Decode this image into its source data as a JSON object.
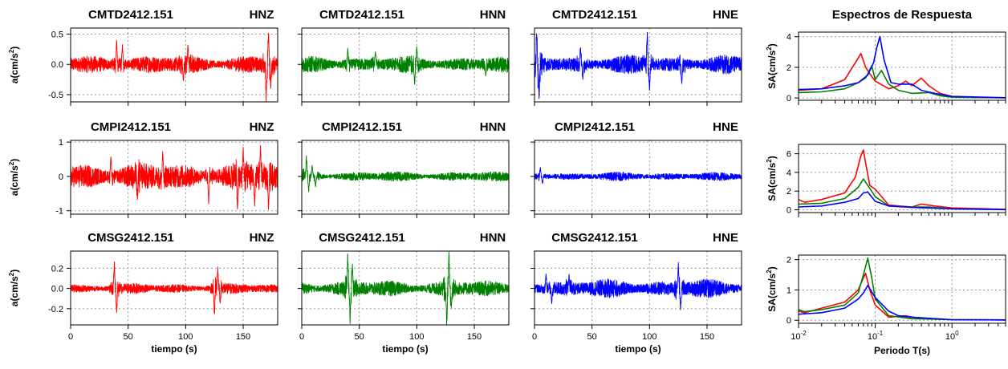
{
  "chart_data": {
    "type": "line",
    "figure": "seismic acceleration records and response spectra",
    "time_axis": {
      "xlabel": "tiempo (s)",
      "xlim": [
        0,
        180
      ],
      "ticks": [
        0,
        50,
        100,
        150
      ]
    },
    "accel_ylabel": "a(cm/s²)",
    "accel_ylabel_exp": "2",
    "channels": [
      {
        "label": "HNZ",
        "color": "#ff0000"
      },
      {
        "label": "HNN",
        "color": "#008000"
      },
      {
        "label": "HNE",
        "color": "#0000ff"
      }
    ],
    "stations": [
      {
        "name": "CMTD2412.151",
        "ylim": [
          -0.62,
          0.6
        ],
        "yticks": [
          {
            "v": 0.5,
            "label": "0.5"
          },
          {
            "v": 0.0,
            "label": "0.0"
          },
          {
            "v": -0.5,
            "label": "-0.5"
          }
        ],
        "traces": [
          {
            "channel": "HNZ",
            "amp": 0.075,
            "peaks": [
              [
                40,
                0.42
              ],
              [
                45,
                0.33
              ],
              [
                98,
                -0.3
              ],
              [
                102,
                0.32
              ],
              [
                170,
                -0.55
              ],
              [
                172,
                0.52
              ],
              [
                174,
                -0.4
              ]
            ]
          },
          {
            "channel": "HNN",
            "amp": 0.065,
            "peaks": [
              [
                40,
                0.28
              ],
              [
                64,
                0.22
              ],
              [
                98,
                -0.35
              ],
              [
                100,
                0.3
              ],
              [
                160,
                -0.2
              ]
            ]
          },
          {
            "channel": "HNE",
            "amp": 0.075,
            "peaks": [
              [
                2,
                0.6
              ],
              [
                4,
                -0.6
              ],
              [
                40,
                0.3
              ],
              [
                42,
                -0.25
              ],
              [
                98,
                0.52
              ],
              [
                100,
                -0.45
              ],
              [
                128,
                -0.33
              ]
            ]
          }
        ],
        "spectrum": {
          "ylabel": "SA(cm/s²)",
          "ylim": [
            -0.15,
            4.3
          ],
          "yticks": [
            0,
            2,
            4
          ],
          "curves": [
            {
              "channel": "HNZ",
              "points": [
                [
                  0.01,
                  0.5
                ],
                [
                  0.02,
                  0.6
                ],
                [
                  0.04,
                  1.2
                ],
                [
                  0.055,
                  2.3
                ],
                [
                  0.065,
                  2.9
                ],
                [
                  0.075,
                  2.0
                ],
                [
                  0.09,
                  1.4
                ],
                [
                  0.1,
                  1.1
                ],
                [
                  0.15,
                  0.6
                ],
                [
                  0.2,
                  0.8
                ],
                [
                  0.25,
                  1.1
                ],
                [
                  0.3,
                  0.8
                ],
                [
                  0.4,
                  1.3
                ],
                [
                  0.5,
                  0.8
                ],
                [
                  0.7,
                  0.3
                ],
                [
                  1.0,
                  0.1
                ],
                [
                  2.0,
                  0.03
                ],
                [
                  5.0,
                  0.02
                ]
              ]
            },
            {
              "channel": "HNN",
              "points": [
                [
                  0.01,
                  0.35
                ],
                [
                  0.02,
                  0.4
                ],
                [
                  0.04,
                  0.6
                ],
                [
                  0.06,
                  1.0
                ],
                [
                  0.075,
                  1.3
                ],
                [
                  0.09,
                  2.1
                ],
                [
                  0.1,
                  1.2
                ],
                [
                  0.12,
                  1.8
                ],
                [
                  0.15,
                  0.9
                ],
                [
                  0.2,
                  0.5
                ],
                [
                  0.3,
                  0.3
                ],
                [
                  0.5,
                  0.35
                ],
                [
                  0.7,
                  0.15
                ],
                [
                  1.0,
                  0.05
                ],
                [
                  5.0,
                  0.01
                ]
              ]
            },
            {
              "channel": "HNE",
              "points": [
                [
                  0.01,
                  0.55
                ],
                [
                  0.02,
                  0.6
                ],
                [
                  0.04,
                  0.8
                ],
                [
                  0.06,
                  1.0
                ],
                [
                  0.08,
                  1.5
                ],
                [
                  0.095,
                  2.3
                ],
                [
                  0.105,
                  3.3
                ],
                [
                  0.115,
                  4.0
                ],
                [
                  0.13,
                  2.5
                ],
                [
                  0.16,
                  1.0
                ],
                [
                  0.2,
                  0.9
                ],
                [
                  0.3,
                  0.9
                ],
                [
                  0.4,
                  0.5
                ],
                [
                  0.6,
                  0.3
                ],
                [
                  1.0,
                  0.1
                ],
                [
                  5.0,
                  0.02
                ]
              ]
            }
          ]
        }
      },
      {
        "name": "CMPI2412.151",
        "ylim": [
          -1.1,
          1.05
        ],
        "yticks": [
          {
            "v": 1,
            "label": "1"
          },
          {
            "v": 0,
            "label": "0"
          },
          {
            "v": -1,
            "label": "-1"
          }
        ],
        "traces": [
          {
            "channel": "HNZ",
            "amp": 0.2,
            "peaks": [
              [
                35,
                0.6
              ],
              [
                58,
                -0.7
              ],
              [
                80,
                0.75
              ],
              [
                120,
                -0.8
              ],
              [
                145,
                -1.0
              ],
              [
                150,
                0.85
              ],
              [
                160,
                -0.9
              ],
              [
                165,
                0.9
              ],
              [
                172,
                -1.0
              ]
            ]
          },
          {
            "channel": "HNN",
            "amp": 0.07,
            "peaks": [
              [
                4,
                0.65
              ],
              [
                6,
                -0.45
              ],
              [
                9,
                0.35
              ],
              [
                12,
                -0.3
              ]
            ]
          },
          {
            "channel": "HNE",
            "amp": 0.06,
            "peaks": [
              [
                5,
                0.25
              ],
              [
                7,
                -0.22
              ]
            ]
          }
        ],
        "spectrum": {
          "ylabel": "SA(cm/s²)",
          "ylim": [
            -0.3,
            7.0
          ],
          "yticks": [
            0,
            2,
            4,
            6
          ],
          "curves": [
            {
              "channel": "HNZ",
              "points": [
                [
                  0.01,
                  1.1
                ],
                [
                  0.012,
                  0.8
                ],
                [
                  0.02,
                  1.1
                ],
                [
                  0.04,
                  1.8
                ],
                [
                  0.055,
                  3.5
                ],
                [
                  0.065,
                  5.8
                ],
                [
                  0.07,
                  6.4
                ],
                [
                  0.075,
                  5.0
                ],
                [
                  0.085,
                  2.6
                ],
                [
                  0.1,
                  2.2
                ],
                [
                  0.15,
                  0.5
                ],
                [
                  0.3,
                  0.3
                ],
                [
                  0.4,
                  0.6
                ],
                [
                  0.6,
                  0.4
                ],
                [
                  1.0,
                  0.2
                ],
                [
                  5.0,
                  0.05
                ]
              ]
            },
            {
              "channel": "HNN",
              "points": [
                [
                  0.01,
                  0.6
                ],
                [
                  0.02,
                  0.7
                ],
                [
                  0.04,
                  1.2
                ],
                [
                  0.06,
                  2.4
                ],
                [
                  0.07,
                  3.3
                ],
                [
                  0.08,
                  2.6
                ],
                [
                  0.1,
                  1.4
                ],
                [
                  0.15,
                  0.4
                ],
                [
                  0.3,
                  0.3
                ],
                [
                  0.5,
                  0.3
                ],
                [
                  1.0,
                  0.1
                ],
                [
                  5.0,
                  0.03
                ]
              ]
            },
            {
              "channel": "HNE",
              "points": [
                [
                  0.01,
                  0.3
                ],
                [
                  0.02,
                  0.4
                ],
                [
                  0.04,
                  0.8
                ],
                [
                  0.06,
                  1.2
                ],
                [
                  0.07,
                  1.8
                ],
                [
                  0.08,
                  1.9
                ],
                [
                  0.1,
                  0.9
                ],
                [
                  0.15,
                  0.4
                ],
                [
                  0.3,
                  0.25
                ],
                [
                  1.0,
                  0.1
                ],
                [
                  5.0,
                  0.02
                ]
              ]
            }
          ]
        }
      },
      {
        "name": "CMSG2412.151",
        "ylim": [
          -0.36,
          0.37
        ],
        "yticks": [
          {
            "v": 0.2,
            "label": "0.2"
          },
          {
            "v": 0.0,
            "label": "0.0"
          },
          {
            "v": -0.2,
            "label": "-0.2"
          }
        ],
        "traces": [
          {
            "channel": "HNZ",
            "amp": 0.025,
            "peaks": [
              [
                38,
                0.29
              ],
              [
                40,
                -0.25
              ],
              [
                125,
                -0.27
              ],
              [
                128,
                0.22
              ],
              [
                130,
                -0.15
              ]
            ]
          },
          {
            "channel": "HNN",
            "amp": 0.04,
            "peaks": [
              [
                40,
                0.34
              ],
              [
                42,
                -0.32
              ],
              [
                44,
                0.25
              ],
              [
                126,
                -0.36
              ],
              [
                128,
                0.37
              ],
              [
                130,
                -0.2
              ]
            ]
          },
          {
            "channel": "HNE",
            "amp": 0.045,
            "peaks": [
              [
                10,
                0.15
              ],
              [
                15,
                -0.15
              ],
              [
                30,
                0.14
              ],
              [
                125,
                0.25
              ],
              [
                127,
                -0.22
              ]
            ]
          }
        ],
        "spectrum": {
          "ylabel": "SA(cm/s²)",
          "ylim": [
            -0.1,
            2.15
          ],
          "yticks": [
            0,
            1,
            2
          ],
          "curves": [
            {
              "channel": "HNZ",
              "points": [
                [
                  0.01,
                  0.3
                ],
                [
                  0.012,
                  0.25
                ],
                [
                  0.02,
                  0.4
                ],
                [
                  0.04,
                  0.6
                ],
                [
                  0.06,
                  1.0
                ],
                [
                  0.07,
                  1.4
                ],
                [
                  0.075,
                  1.55
                ],
                [
                  0.085,
                  1.0
                ],
                [
                  0.1,
                  0.5
                ],
                [
                  0.15,
                  0.1
                ],
                [
                  0.25,
                  0.15
                ],
                [
                  0.4,
                  0.05
                ],
                [
                  1.0,
                  0.02
                ],
                [
                  5.0,
                  0.01
                ]
              ]
            },
            {
              "channel": "HNN",
              "points": [
                [
                  0.01,
                  0.35
                ],
                [
                  0.012,
                  0.28
                ],
                [
                  0.02,
                  0.35
                ],
                [
                  0.04,
                  0.5
                ],
                [
                  0.06,
                  0.9
                ],
                [
                  0.07,
                  1.5
                ],
                [
                  0.08,
                  2.05
                ],
                [
                  0.09,
                  1.4
                ],
                [
                  0.1,
                  0.7
                ],
                [
                  0.15,
                  0.15
                ],
                [
                  0.3,
                  0.05
                ],
                [
                  1.0,
                  0.02
                ],
                [
                  5.0,
                  0.01
                ]
              ]
            },
            {
              "channel": "HNE",
              "points": [
                [
                  0.01,
                  0.2
                ],
                [
                  0.02,
                  0.25
                ],
                [
                  0.04,
                  0.4
                ],
                [
                  0.06,
                  0.7
                ],
                [
                  0.07,
                  0.9
                ],
                [
                  0.08,
                  1.15
                ],
                [
                  0.1,
                  0.75
                ],
                [
                  0.15,
                  0.3
                ],
                [
                  0.2,
                  0.15
                ],
                [
                  0.3,
                  0.1
                ],
                [
                  1.0,
                  0.02
                ],
                [
                  5.0,
                  0.01
                ]
              ]
            }
          ]
        }
      }
    ],
    "spectra": {
      "title": "Espectros de Respuesta",
      "xlabel": "Periodo T(s)",
      "xscale": "log",
      "xlim": [
        0.01,
        5
      ],
      "xticks": [
        {
          "v": 0.01,
          "base": "10",
          "exp": "-2"
        },
        {
          "v": 0.1,
          "base": "10",
          "exp": "-1"
        },
        {
          "v": 1,
          "base": "10",
          "exp": "0"
        }
      ]
    },
    "grid": true
  }
}
